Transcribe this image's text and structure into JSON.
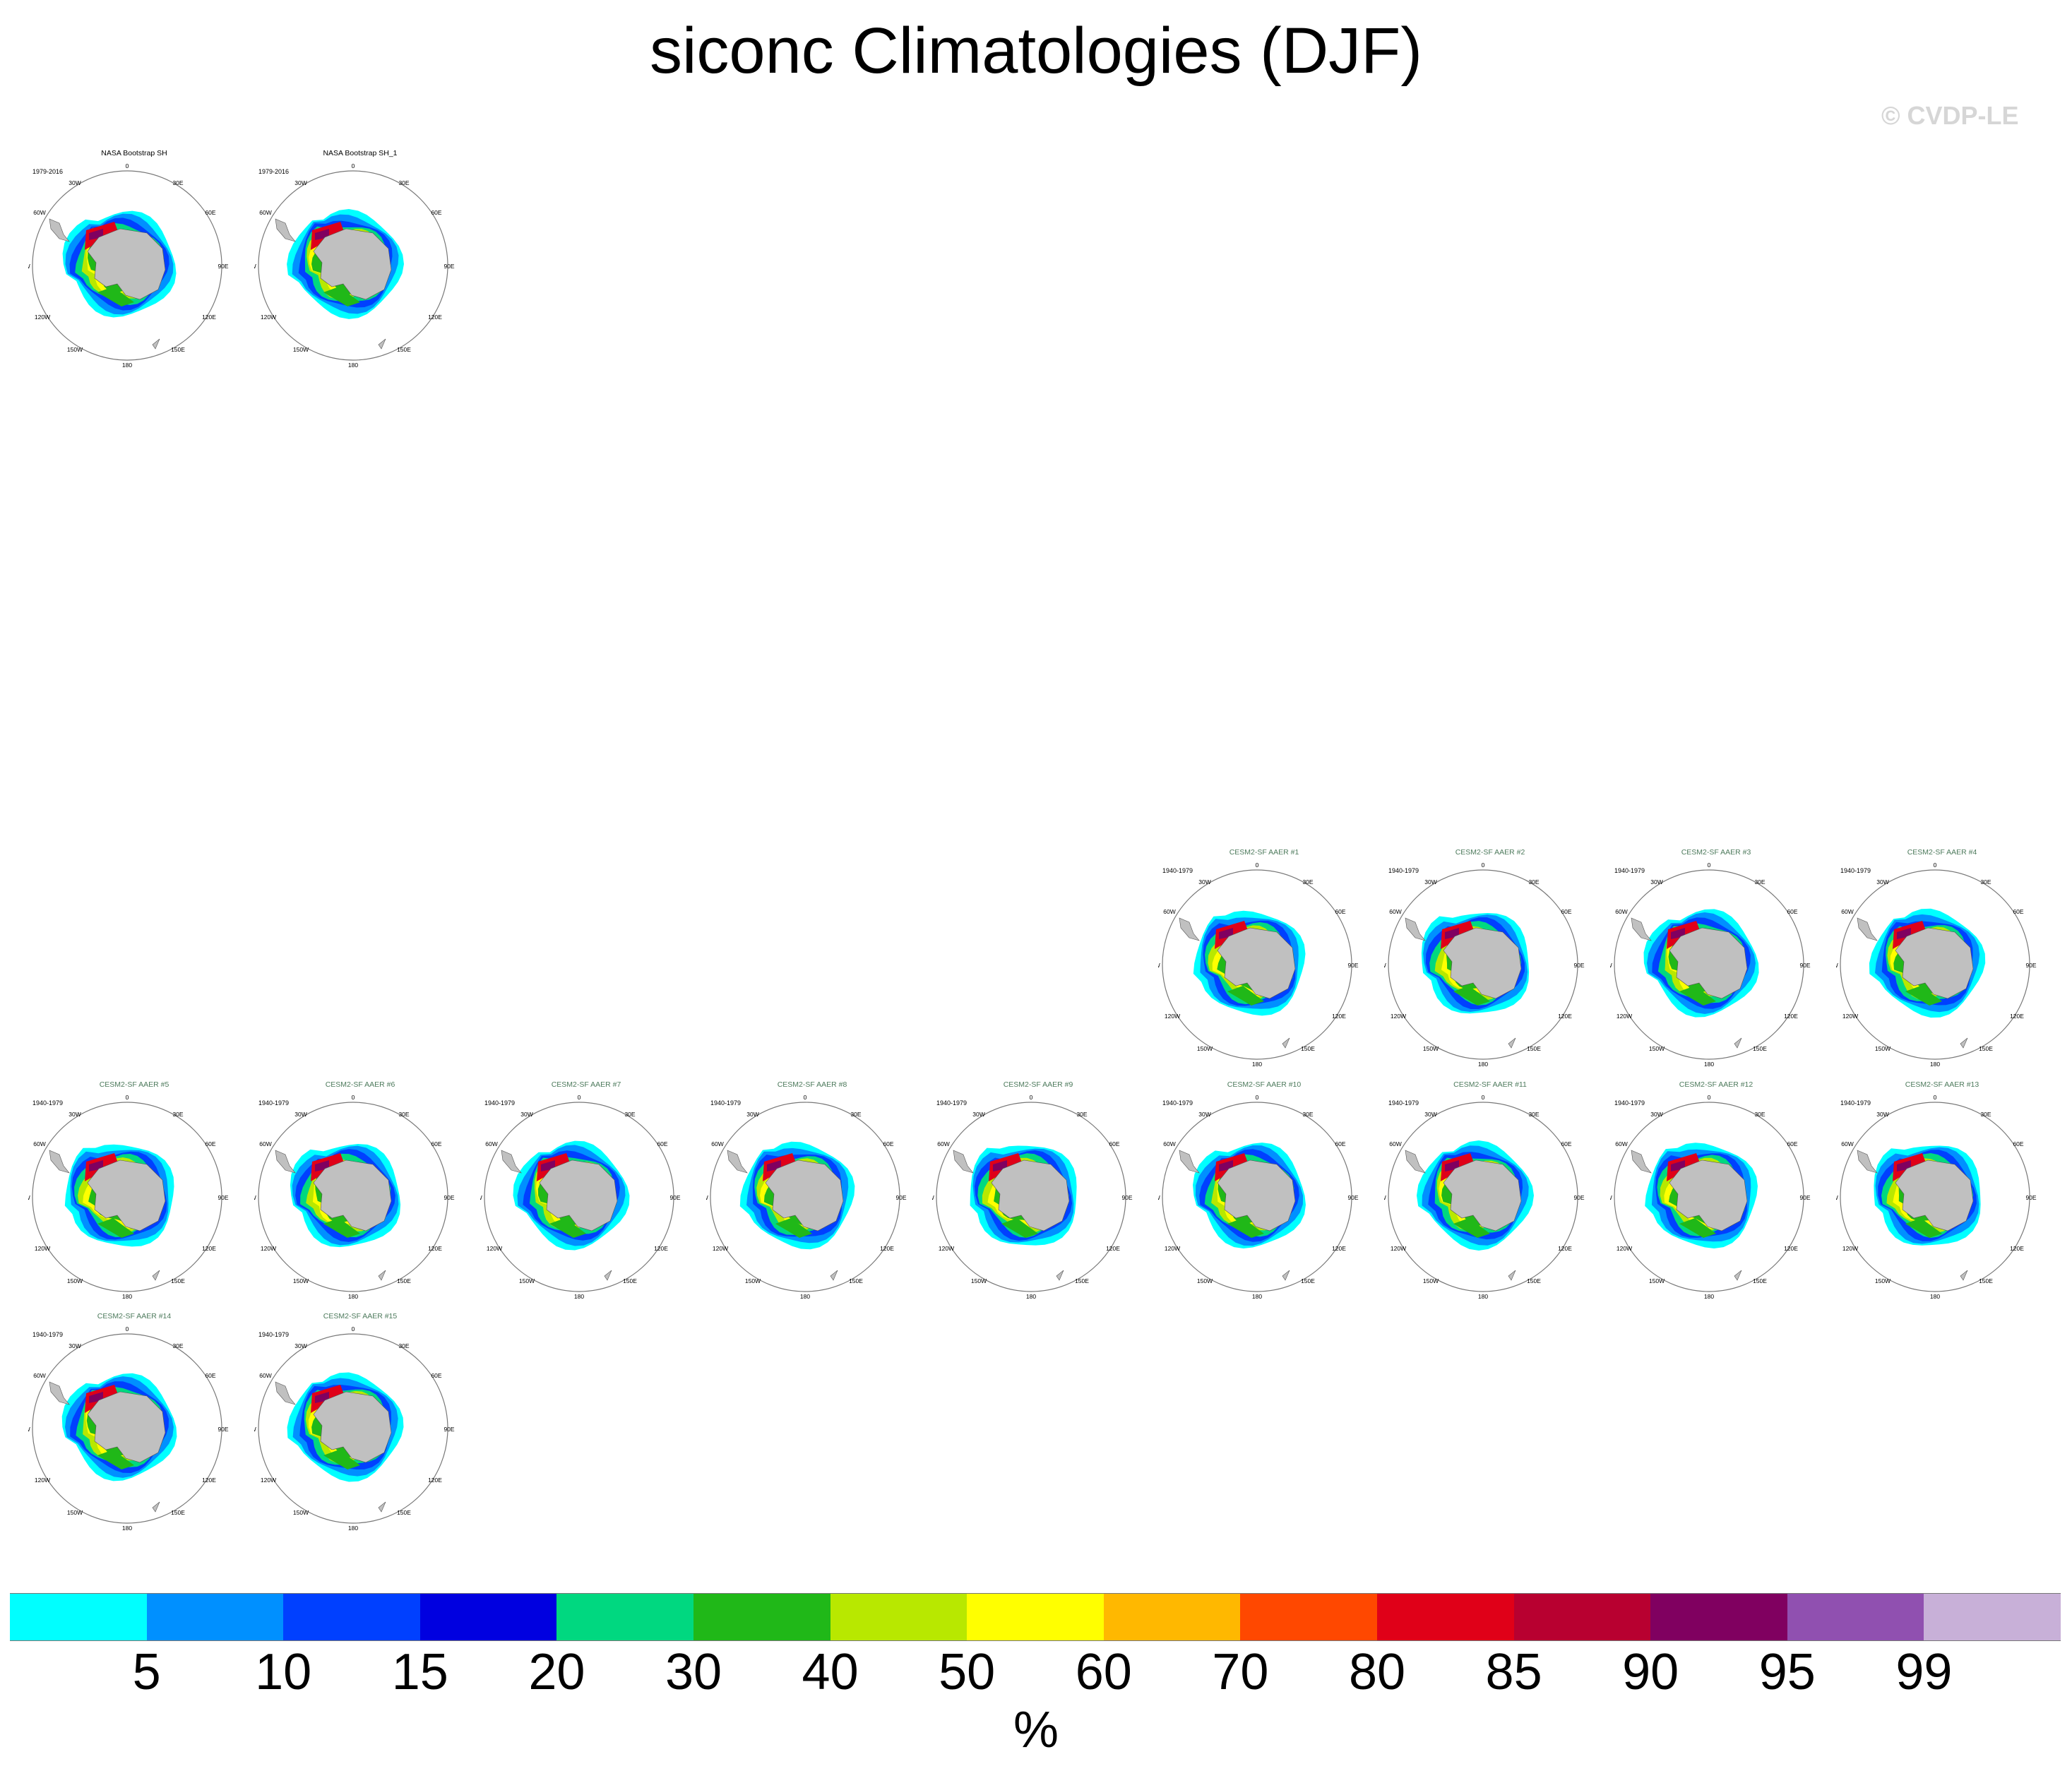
{
  "title": "siconc Climatologies (DJF)",
  "copyright": "© CVDP-LE",
  "units": "%",
  "map_labels": {
    "lon_0": "0",
    "lon_30E": "30E",
    "lon_60E": "60E",
    "lon_90E": "90E",
    "lon_120E": "120E",
    "lon_150E": "150E",
    "lon_180": "180",
    "lon_150W": "150W",
    "lon_120W": "120W",
    "lon_90W": "90W",
    "lon_60W": "60W",
    "lon_30W": "30W"
  },
  "panels": [
    {
      "title": "NASA Bootstrap SH",
      "years": "1979-2016",
      "kind": "obs"
    },
    {
      "title": "NASA Bootstrap SH_1",
      "years": "1979-2016",
      "kind": "obs"
    },
    {
      "title": "CESM2-SF AAER #1",
      "years": "1940-1979",
      "kind": "model"
    },
    {
      "title": "CESM2-SF AAER #2",
      "years": "1940-1979",
      "kind": "model"
    },
    {
      "title": "CESM2-SF AAER #3",
      "years": "1940-1979",
      "kind": "model"
    },
    {
      "title": "CESM2-SF AAER #4",
      "years": "1940-1979",
      "kind": "model"
    },
    {
      "title": "CESM2-SF AAER #5",
      "years": "1940-1979",
      "kind": "model"
    },
    {
      "title": "CESM2-SF AAER #6",
      "years": "1940-1979",
      "kind": "model"
    },
    {
      "title": "CESM2-SF AAER #7",
      "years": "1940-1979",
      "kind": "model"
    },
    {
      "title": "CESM2-SF AAER #8",
      "years": "1940-1979",
      "kind": "model"
    },
    {
      "title": "CESM2-SF AAER #9",
      "years": "1940-1979",
      "kind": "model"
    },
    {
      "title": "CESM2-SF AAER #10",
      "years": "1940-1979",
      "kind": "model"
    },
    {
      "title": "CESM2-SF AAER #11",
      "years": "1940-1979",
      "kind": "model"
    },
    {
      "title": "CESM2-SF AAER #12",
      "years": "1940-1979",
      "kind": "model"
    },
    {
      "title": "CESM2-SF AAER #13",
      "years": "1940-1979",
      "kind": "model"
    },
    {
      "title": "CESM2-SF AAER #14",
      "years": "1940-1979",
      "kind": "model"
    },
    {
      "title": "CESM2-SF AAER #15",
      "years": "1940-1979",
      "kind": "model"
    }
  ],
  "chart_data": {
    "type": "heatmap",
    "title": "siconc Climatologies (DJF)",
    "season": "DJF",
    "variable": "siconc",
    "projection": "south polar stereographic",
    "colorbar": {
      "units": "%",
      "levels": [
        "5",
        "10",
        "15",
        "20",
        "30",
        "40",
        "50",
        "60",
        "70",
        "80",
        "85",
        "90",
        "95",
        "99"
      ],
      "colors": [
        "#00ffff",
        "#0090ff",
        "#0040ff",
        "#0000e0",
        "#00d880",
        "#20b818",
        "#b8e800",
        "#ffff00",
        "#ffb800",
        "#ff4800",
        "#e00018",
        "#b80030",
        "#800060",
        "#9050b0",
        "#c8b0d8"
      ]
    },
    "series": [
      {
        "name": "NASA Bootstrap SH",
        "period": "1979-2016"
      },
      {
        "name": "NASA Bootstrap SH_1",
        "period": "1979-2016"
      },
      {
        "name": "CESM2-SF AAER #1",
        "period": "1940-1979"
      },
      {
        "name": "CESM2-SF AAER #2",
        "period": "1940-1979"
      },
      {
        "name": "CESM2-SF AAER #3",
        "period": "1940-1979"
      },
      {
        "name": "CESM2-SF AAER #4",
        "period": "1940-1979"
      },
      {
        "name": "CESM2-SF AAER #5",
        "period": "1940-1979"
      },
      {
        "name": "CESM2-SF AAER #6",
        "period": "1940-1979"
      },
      {
        "name": "CESM2-SF AAER #7",
        "period": "1940-1979"
      },
      {
        "name": "CESM2-SF AAER #8",
        "period": "1940-1979"
      },
      {
        "name": "CESM2-SF AAER #9",
        "period": "1940-1979"
      },
      {
        "name": "CESM2-SF AAER #10",
        "period": "1940-1979"
      },
      {
        "name": "CESM2-SF AAER #11",
        "period": "1940-1979"
      },
      {
        "name": "CESM2-SF AAER #12",
        "period": "1940-1979"
      },
      {
        "name": "CESM2-SF AAER #13",
        "period": "1940-1979"
      },
      {
        "name": "CESM2-SF AAER #14",
        "period": "1940-1979"
      },
      {
        "name": "CESM2-SF AAER #15",
        "period": "1940-1979"
      }
    ]
  }
}
